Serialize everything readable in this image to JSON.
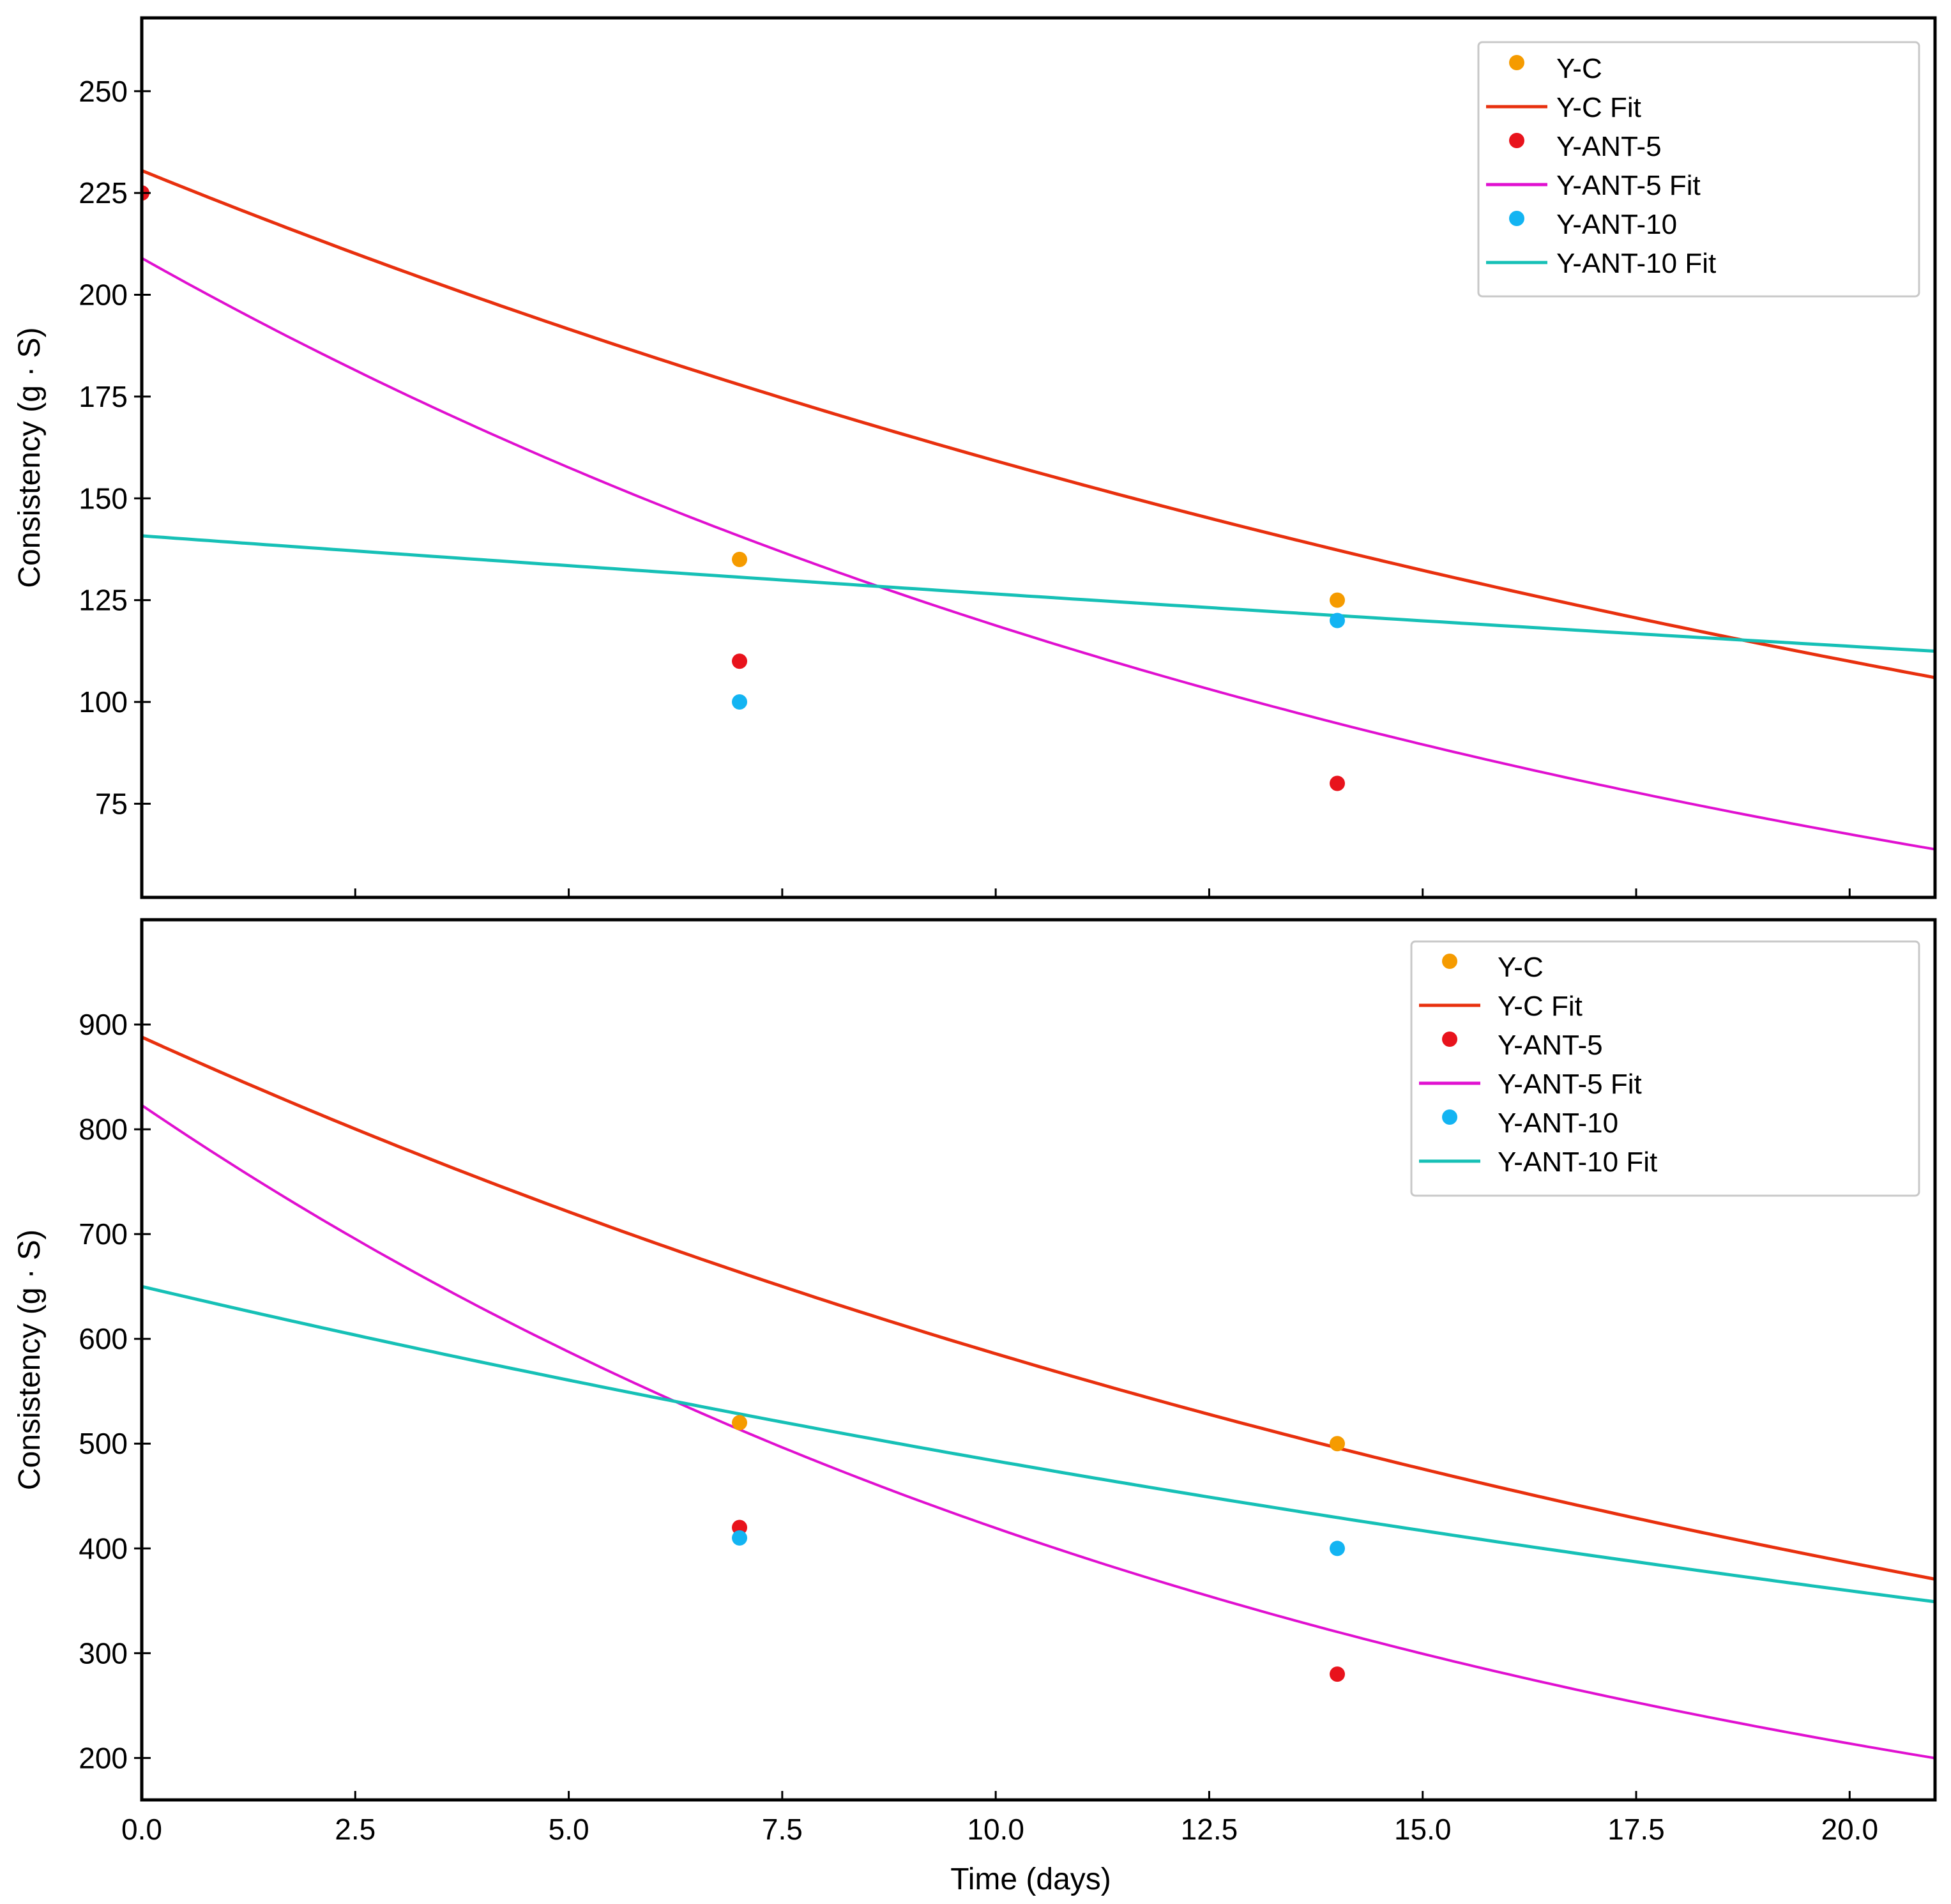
{
  "chart_data": [
    {
      "type": "scatter",
      "panel": "top",
      "title": "",
      "xlabel": "",
      "ylabel": "Consistency (g · S)",
      "xlim": [
        0,
        21
      ],
      "ylim": [
        52,
        268
      ],
      "xticks": [
        0.0,
        2.5,
        5.0,
        7.5,
        10.0,
        12.5,
        15.0,
        17.5,
        20.0
      ],
      "yticks": [
        75,
        100,
        125,
        150,
        175,
        200,
        225,
        250
      ],
      "ytick_labels": [
        "75",
        "100",
        "125",
        "150",
        "175",
        "200",
        "225",
        "250"
      ],
      "grid": false,
      "legend_position": "top-right",
      "series": [
        {
          "name": "Y-C",
          "kind": "points",
          "color": "#f59b00",
          "x": [
            0,
            7,
            14
          ],
          "y": [
            225,
            135,
            125
          ]
        },
        {
          "name": "Y-C Fit",
          "kind": "line",
          "color": "#e8300e",
          "a": 230.5,
          "k": 0.037
        },
        {
          "name": "Y-ANT-5",
          "kind": "points",
          "color": "#e8131c",
          "x": [
            0,
            7,
            14
          ],
          "y": [
            225,
            110,
            80
          ]
        },
        {
          "name": "Y-ANT-5 Fit",
          "kind": "line",
          "color": "#e010d0",
          "a": 209,
          "k": 0.0565
        },
        {
          "name": "Y-ANT-10",
          "kind": "points",
          "color": "#13b4f2",
          "x": [
            7,
            14
          ],
          "y": [
            100,
            120
          ]
        },
        {
          "name": "Y-ANT-10 Fit",
          "kind": "line",
          "color": "#16c0b6",
          "a": 140.8,
          "k": 0.0107
        }
      ]
    },
    {
      "type": "scatter",
      "panel": "bottom",
      "title": "",
      "xlabel": "Time (days)",
      "ylabel": "Consistency (g · S)",
      "xlim": [
        0,
        21
      ],
      "ylim": [
        160,
        1000
      ],
      "xticks": [
        0.0,
        2.5,
        5.0,
        7.5,
        10.0,
        12.5,
        15.0,
        17.5,
        20.0
      ],
      "xtick_labels": [
        "0.0",
        "2.5",
        "5.0",
        "7.5",
        "10.0",
        "12.5",
        "15.0",
        "17.5",
        "20.0"
      ],
      "yticks": [
        200,
        300,
        400,
        500,
        600,
        700,
        800,
        900
      ],
      "ytick_labels": [
        "200",
        "300",
        "400",
        "500",
        "600",
        "700",
        "800",
        "900"
      ],
      "grid": false,
      "legend_position": "top-right",
      "series": [
        {
          "name": "Y-C",
          "kind": "points",
          "color": "#f59b00",
          "x": [
            7,
            14
          ],
          "y": [
            520,
            500
          ]
        },
        {
          "name": "Y-C Fit",
          "kind": "line",
          "color": "#e8300e",
          "a": 888,
          "k": 0.0416
        },
        {
          "name": "Y-ANT-5",
          "kind": "points",
          "color": "#e8131c",
          "x": [
            7,
            14
          ],
          "y": [
            420,
            280
          ]
        },
        {
          "name": "Y-ANT-5 Fit",
          "kind": "line",
          "color": "#e010d0",
          "a": 823,
          "k": 0.0674
        },
        {
          "name": "Y-ANT-10",
          "kind": "points",
          "color": "#13b4f2",
          "x": [
            7,
            14
          ],
          "y": [
            410,
            400
          ]
        },
        {
          "name": "Y-ANT-10 Fit",
          "kind": "line",
          "color": "#16c0b6",
          "a": 650,
          "k": 0.0296
        }
      ]
    }
  ]
}
